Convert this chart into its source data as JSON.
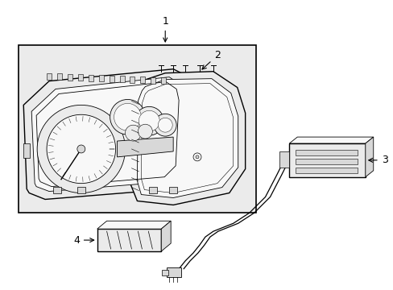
{
  "background_color": "#ffffff",
  "fig_width": 4.89,
  "fig_height": 3.6,
  "dpi": 100,
  "line_color": "#000000",
  "fill_light": "#ebebeb",
  "fill_mid": "#d8d8d8",
  "fill_white": "#f8f8f8"
}
